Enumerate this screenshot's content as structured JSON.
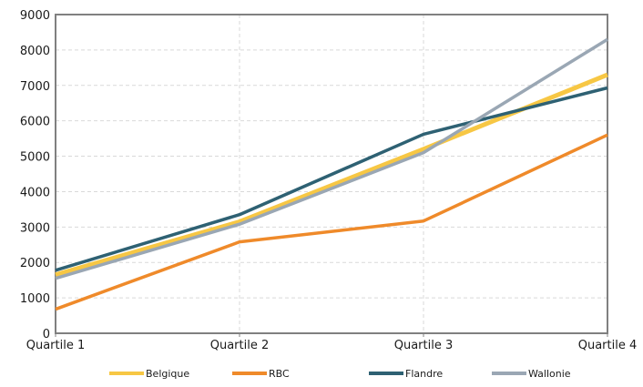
{
  "chart_data": {
    "type": "line",
    "categories": [
      "Quartile 1",
      "Quartile 2",
      "Quartile 3",
      "Quartile 4"
    ],
    "ylim": [
      0,
      9000
    ],
    "yticks": [
      0,
      1000,
      2000,
      3000,
      4000,
      5000,
      6000,
      7000,
      8000,
      9000
    ],
    "grid": true,
    "legend_position": "bottom",
    "series": [
      {
        "name": "Belgique",
        "values": [
          1650,
          3150,
          5200,
          7300
        ],
        "color": "#f7c744"
      },
      {
        "name": "RBC",
        "values": [
          680,
          2580,
          3170,
          5600
        ],
        "color": "#ef8a2a"
      },
      {
        "name": "Flandre",
        "values": [
          1780,
          3350,
          5620,
          6930
        ],
        "color": "#2e6173"
      },
      {
        "name": "Wallonie",
        "values": [
          1550,
          3080,
          5100,
          8300
        ],
        "color": "#9aa7b4"
      }
    ]
  }
}
